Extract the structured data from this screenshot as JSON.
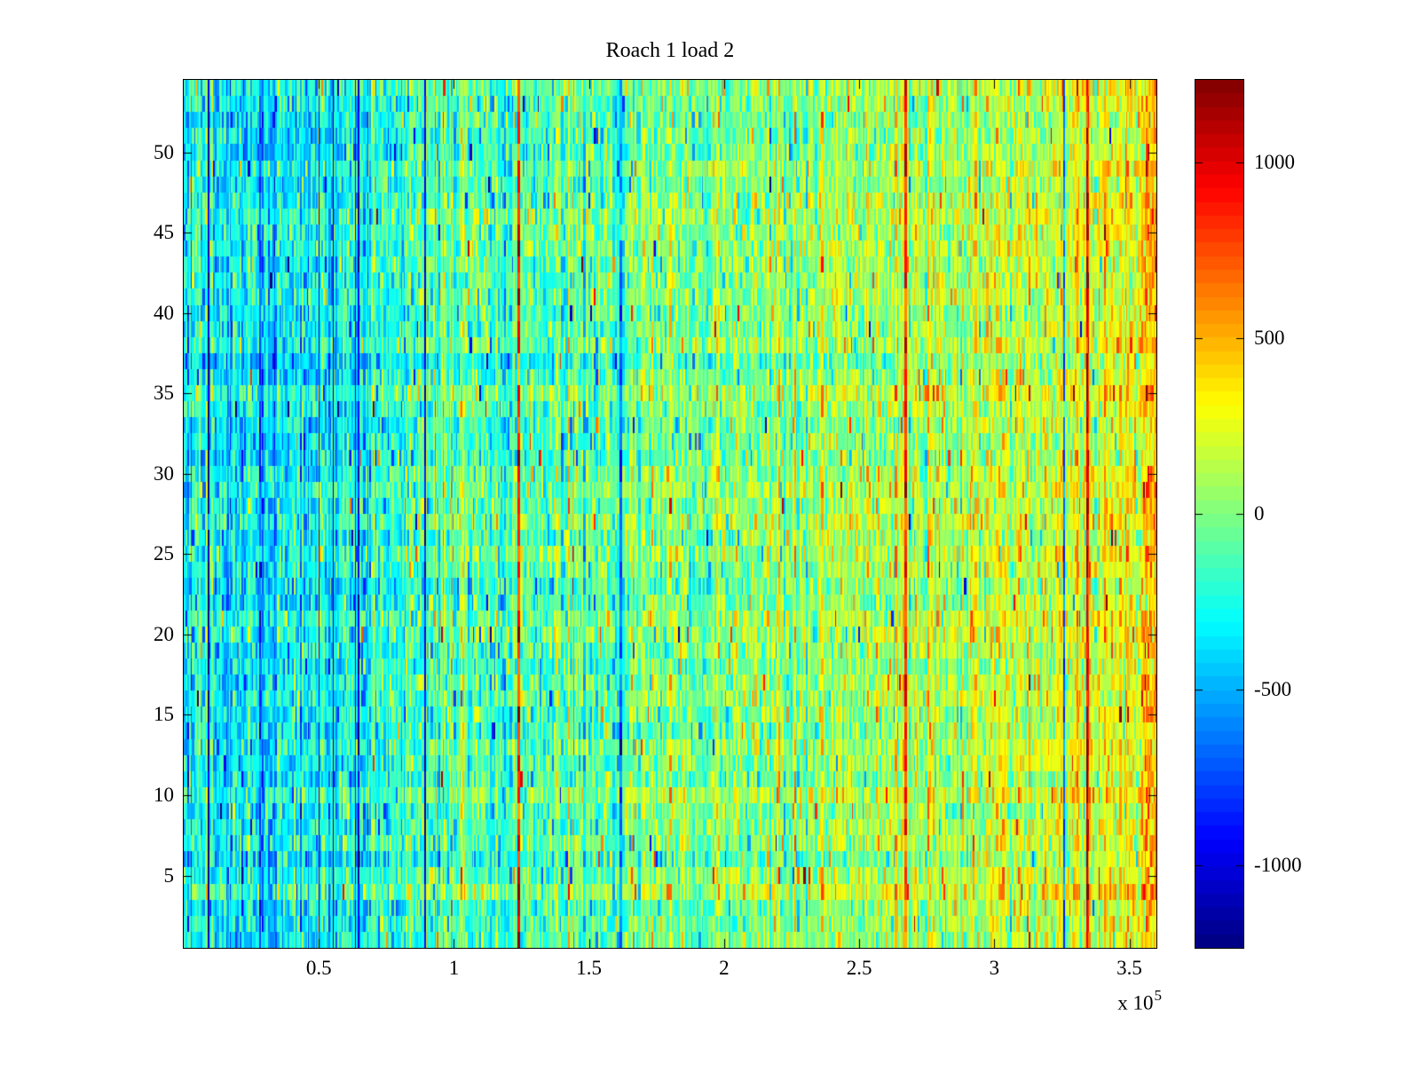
{
  "figure": {
    "title": "Roach 1 load 2",
    "background_color": "#ffffff",
    "axes_color": "#000000"
  },
  "x_axis": {
    "ticks": [
      {
        "label": "0.5",
        "value": 50000
      },
      {
        "label": "1",
        "value": 100000
      },
      {
        "label": "1.5",
        "value": 150000
      },
      {
        "label": "2",
        "value": 200000
      },
      {
        "label": "2.5",
        "value": 250000
      },
      {
        "label": "3",
        "value": 300000
      },
      {
        "label": "3.5",
        "value": 350000
      }
    ],
    "exponent_prefix": "x 10",
    "exponent_power": "5",
    "range": [
      0,
      360000
    ]
  },
  "y_axis": {
    "ticks": [
      {
        "label": "5",
        "value": 5
      },
      {
        "label": "10",
        "value": 10
      },
      {
        "label": "15",
        "value": 15
      },
      {
        "label": "20",
        "value": 20
      },
      {
        "label": "25",
        "value": 25
      },
      {
        "label": "30",
        "value": 30
      },
      {
        "label": "35",
        "value": 35
      },
      {
        "label": "40",
        "value": 40
      },
      {
        "label": "45",
        "value": 45
      },
      {
        "label": "50",
        "value": 50
      }
    ],
    "range": [
      0.5,
      54.5
    ]
  },
  "colorbar": {
    "ticks": [
      {
        "label": "1000",
        "value": 1000
      },
      {
        "label": "500",
        "value": 500
      },
      {
        "label": "0",
        "value": 0
      },
      {
        "label": "-500",
        "value": -500
      },
      {
        "label": "-1000",
        "value": -1000
      }
    ],
    "range": [
      -1235,
      1235
    ],
    "colormap": "jet",
    "bands": 64
  },
  "chart_data": {
    "type": "heatmap",
    "title": "Roach 1 load 2",
    "x_range": [
      0,
      360000
    ],
    "x_tick_values": [
      50000,
      100000,
      150000,
      200000,
      250000,
      300000,
      350000
    ],
    "x_scale_label": "x 10^5",
    "y_rows": 54,
    "y_tick_values": [
      5,
      10,
      15,
      20,
      25,
      30,
      35,
      40,
      45,
      50
    ],
    "y_range": [
      0.5,
      54.5
    ],
    "color_limits": [
      -1235,
      1235
    ],
    "colormap": "jet",
    "colorbar_tick_values": [
      1000,
      500,
      0,
      -500,
      -1000
    ],
    "appearance": {
      "seed": 1337,
      "mean_trend": [
        [
          0.0,
          -270
        ],
        [
          0.1,
          -330
        ],
        [
          0.25,
          -150
        ],
        [
          0.45,
          -20
        ],
        [
          0.62,
          60
        ],
        [
          0.78,
          125
        ],
        [
          0.9,
          190
        ],
        [
          0.965,
          255
        ],
        [
          1.0,
          460
        ]
      ],
      "row_offset_std": 55,
      "column_offset_std": 130,
      "cell_noise_std": 190,
      "extreme_column_prob": 0.018,
      "extreme_column_left_bonus": 0.02,
      "outlier_prob": 0.012,
      "tick_len_plot": 10,
      "tick_len_y": 9,
      "tick_len_colorbar": 8
    }
  }
}
